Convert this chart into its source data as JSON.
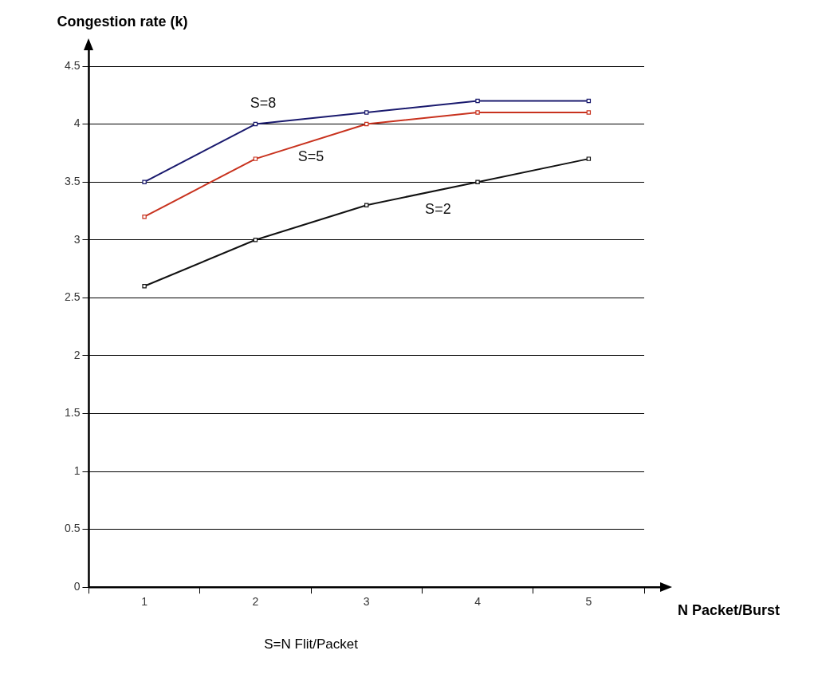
{
  "chart_data": {
    "type": "line",
    "ylabel": "Congestion rate (k)",
    "xlabel": "N Packet/Burst",
    "annotations": [
      "S=N Flit/Packet"
    ],
    "categories": [
      "1",
      "2",
      "3",
      "4",
      "5"
    ],
    "series": [
      {
        "name": "S=8",
        "color": "#1a1a6e",
        "values": [
          3.5,
          4.0,
          4.1,
          4.2,
          4.2
        ]
      },
      {
        "name": "S=5",
        "color": "#c8321e",
        "values": [
          3.2,
          3.7,
          4.0,
          4.1,
          4.1
        ]
      },
      {
        "name": "S=2",
        "color": "#111111",
        "values": [
          2.6,
          3.0,
          3.3,
          3.5,
          3.7
        ]
      }
    ],
    "ylim": [
      0,
      4.5
    ],
    "yticks": [
      0,
      0.5,
      1,
      1.5,
      2,
      2.5,
      3,
      3.5,
      4,
      4.5
    ],
    "grid": "y",
    "legend": false,
    "marker": "square",
    "line_style": "solid"
  }
}
